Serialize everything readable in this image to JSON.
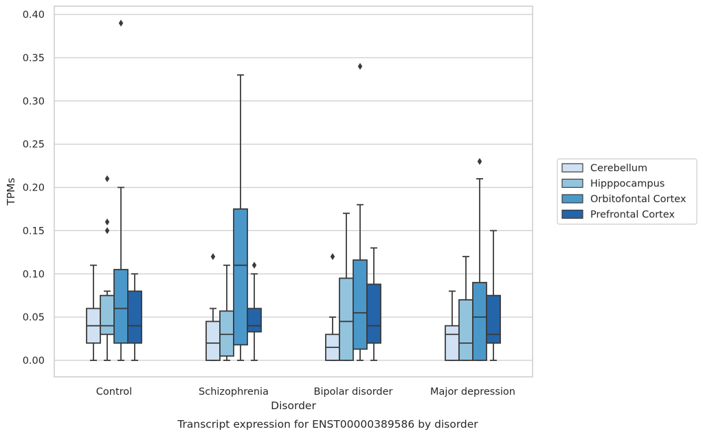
{
  "caption": "Transcript expression for ENST00000389586 by disorder",
  "chart_data": {
    "type": "box",
    "title": "",
    "xlabel": "Disorder",
    "ylabel": "TPMs",
    "ylim": [
      -0.018,
      0.41
    ],
    "yticks": [
      0.0,
      0.05,
      0.1,
      0.15,
      0.2,
      0.25,
      0.3,
      0.35,
      0.4
    ],
    "ytick_labels": [
      "0.00",
      "0.05",
      "0.10",
      "0.15",
      "0.20",
      "0.25",
      "0.30",
      "0.35",
      "0.40"
    ],
    "grid": "horizontal",
    "legend_position": "right",
    "categories": [
      "Control",
      "Schizophrenia",
      "Bipolar disorder",
      "Major depression"
    ],
    "series": [
      {
        "name": "Cerebellum",
        "color": "#cfe1f2",
        "boxes": [
          {
            "whisker_low": 0.0,
            "q1": 0.02,
            "median": 0.04,
            "q3": 0.06,
            "whisker_high": 0.11,
            "outliers": []
          },
          {
            "whisker_low": 0.0,
            "q1": 0.0,
            "median": 0.02,
            "q3": 0.045,
            "whisker_high": 0.06,
            "outliers": [
              0.12
            ]
          },
          {
            "whisker_low": 0.0,
            "q1": 0.0,
            "median": 0.015,
            "q3": 0.03,
            "whisker_high": 0.05,
            "outliers": [
              0.12
            ]
          },
          {
            "whisker_low": 0.0,
            "q1": 0.0,
            "median": 0.03,
            "q3": 0.04,
            "whisker_high": 0.08,
            "outliers": []
          }
        ]
      },
      {
        "name": "Hipppocampus",
        "color": "#93c4de",
        "boxes": [
          {
            "whisker_low": 0.0,
            "q1": 0.03,
            "median": 0.04,
            "q3": 0.075,
            "whisker_high": 0.08,
            "outliers": [
              0.15,
              0.16,
              0.21
            ]
          },
          {
            "whisker_low": 0.0,
            "q1": 0.005,
            "median": 0.03,
            "q3": 0.057,
            "whisker_high": 0.11,
            "outliers": []
          },
          {
            "whisker_low": 0.0,
            "q1": 0.0,
            "median": 0.045,
            "q3": 0.095,
            "whisker_high": 0.17,
            "outliers": []
          },
          {
            "whisker_low": 0.0,
            "q1": 0.0,
            "median": 0.02,
            "q3": 0.07,
            "whisker_high": 0.12,
            "outliers": []
          }
        ]
      },
      {
        "name": "Orbitofontal Cortex",
        "color": "#4a98c9",
        "boxes": [
          {
            "whisker_low": 0.0,
            "q1": 0.02,
            "median": 0.06,
            "q3": 0.105,
            "whisker_high": 0.2,
            "outliers": [
              0.39
            ]
          },
          {
            "whisker_low": 0.0,
            "q1": 0.018,
            "median": 0.11,
            "q3": 0.175,
            "whisker_high": 0.33,
            "outliers": []
          },
          {
            "whisker_low": 0.0,
            "q1": 0.013,
            "median": 0.055,
            "q3": 0.116,
            "whisker_high": 0.18,
            "outliers": [
              0.34
            ]
          },
          {
            "whisker_low": 0.0,
            "q1": 0.0,
            "median": 0.05,
            "q3": 0.09,
            "whisker_high": 0.21,
            "outliers": [
              0.23
            ]
          }
        ]
      },
      {
        "name": "Prefrontal Cortex",
        "color": "#2464a9",
        "boxes": [
          {
            "whisker_low": 0.0,
            "q1": 0.02,
            "median": 0.04,
            "q3": 0.08,
            "whisker_high": 0.1,
            "outliers": []
          },
          {
            "whisker_low": 0.0,
            "q1": 0.033,
            "median": 0.04,
            "q3": 0.06,
            "whisker_high": 0.1,
            "outliers": [
              0.11
            ]
          },
          {
            "whisker_low": 0.0,
            "q1": 0.02,
            "median": 0.04,
            "q3": 0.088,
            "whisker_high": 0.13,
            "outliers": []
          },
          {
            "whisker_low": 0.0,
            "q1": 0.02,
            "median": 0.03,
            "q3": 0.075,
            "whisker_high": 0.15,
            "outliers": []
          }
        ]
      }
    ]
  }
}
